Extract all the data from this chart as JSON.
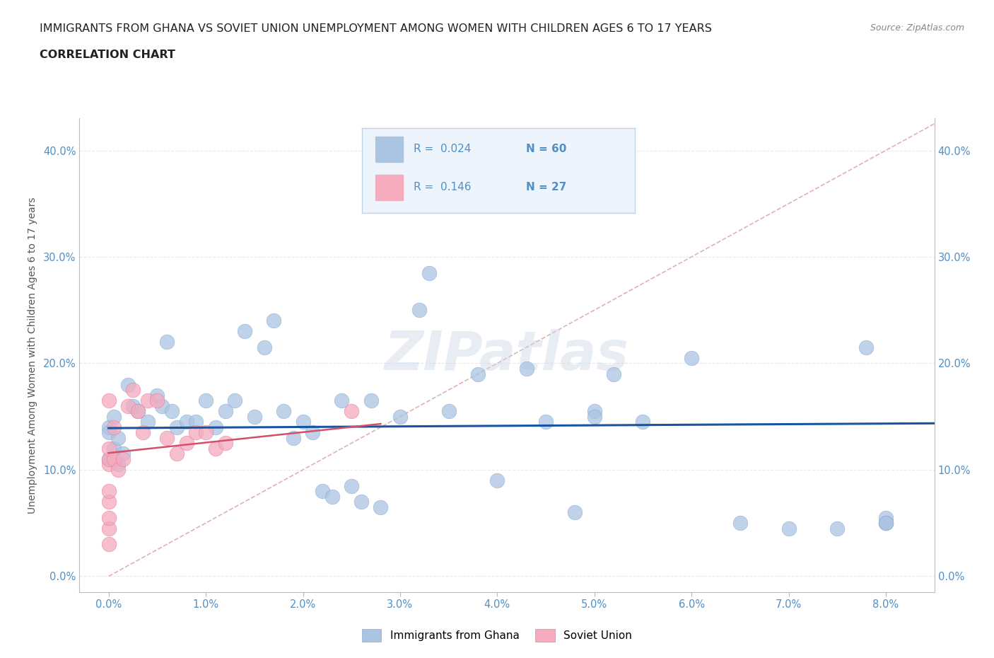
{
  "title_line1": "IMMIGRANTS FROM GHANA VS SOVIET UNION UNEMPLOYMENT AMONG WOMEN WITH CHILDREN AGES 6 TO 17 YEARS",
  "title_line2": "CORRELATION CHART",
  "source": "Source: ZipAtlas.com",
  "ylabel": "Unemployment Among Women with Children Ages 6 to 17 years",
  "xlabel_ticks": [
    0.0,
    1.0,
    2.0,
    3.0,
    4.0,
    5.0,
    6.0,
    7.0,
    8.0
  ],
  "ylabel_ticks": [
    0.0,
    10.0,
    20.0,
    30.0,
    40.0
  ],
  "xlim": [
    -0.3,
    8.5
  ],
  "ylim": [
    -1.5,
    43.0
  ],
  "ghana_R": 0.024,
  "ghana_N": 60,
  "soviet_R": 0.146,
  "soviet_N": 27,
  "ghana_color": "#aac4e2",
  "soviet_color": "#f5aabe",
  "ghana_line_color": "#1855a0",
  "soviet_line_color": "#d4506a",
  "ref_line_color": "#e0b0b8",
  "watermark": "ZIPatlas",
  "ghana_x": [
    0.0,
    0.0,
    0.0,
    0.05,
    0.05,
    0.1,
    0.1,
    0.15,
    0.2,
    0.25,
    0.3,
    0.4,
    0.5,
    0.55,
    0.6,
    0.65,
    0.7,
    0.8,
    0.9,
    1.0,
    1.1,
    1.2,
    1.3,
    1.4,
    1.5,
    1.6,
    1.7,
    1.8,
    1.9,
    2.0,
    2.1,
    2.2,
    2.3,
    2.4,
    2.5,
    2.6,
    2.7,
    2.8,
    3.0,
    3.2,
    3.3,
    3.5,
    3.8,
    4.0,
    4.3,
    4.5,
    4.8,
    5.0,
    5.0,
    5.2,
    5.5,
    6.0,
    6.5,
    7.0,
    7.5,
    7.8,
    8.0,
    8.0,
    8.0,
    8.0
  ],
  "ghana_y": [
    14.0,
    13.5,
    11.0,
    15.0,
    12.0,
    13.0,
    10.5,
    11.5,
    18.0,
    16.0,
    15.5,
    14.5,
    17.0,
    16.0,
    22.0,
    15.5,
    14.0,
    14.5,
    14.5,
    16.5,
    14.0,
    15.5,
    16.5,
    23.0,
    15.0,
    21.5,
    24.0,
    15.5,
    13.0,
    14.5,
    13.5,
    8.0,
    7.5,
    16.5,
    8.5,
    7.0,
    16.5,
    6.5,
    15.0,
    25.0,
    28.5,
    15.5,
    19.0,
    9.0,
    19.5,
    14.5,
    6.0,
    15.5,
    15.0,
    19.0,
    14.5,
    20.5,
    5.0,
    4.5,
    4.5,
    21.5,
    5.0,
    5.5,
    5.0,
    5.0
  ],
  "soviet_x": [
    0.0,
    0.0,
    0.0,
    0.0,
    0.0,
    0.0,
    0.0,
    0.0,
    0.0,
    0.05,
    0.05,
    0.1,
    0.15,
    0.2,
    0.25,
    0.3,
    0.35,
    0.4,
    0.5,
    0.6,
    0.7,
    0.8,
    0.9,
    1.0,
    1.1,
    1.2,
    2.5
  ],
  "soviet_y": [
    3.0,
    4.5,
    5.5,
    7.0,
    8.0,
    10.5,
    11.0,
    12.0,
    16.5,
    14.0,
    11.0,
    10.0,
    11.0,
    16.0,
    17.5,
    15.5,
    13.5,
    16.5,
    16.5,
    13.0,
    11.5,
    12.5,
    13.5,
    13.5,
    12.0,
    12.5,
    15.5
  ],
  "background_color": "#ffffff",
  "plot_bg_color": "#ffffff",
  "grid_color": "#e5e5e5",
  "tick_color": "#5090c8",
  "title_color": "#222222",
  "ylabel_color": "#555555"
}
